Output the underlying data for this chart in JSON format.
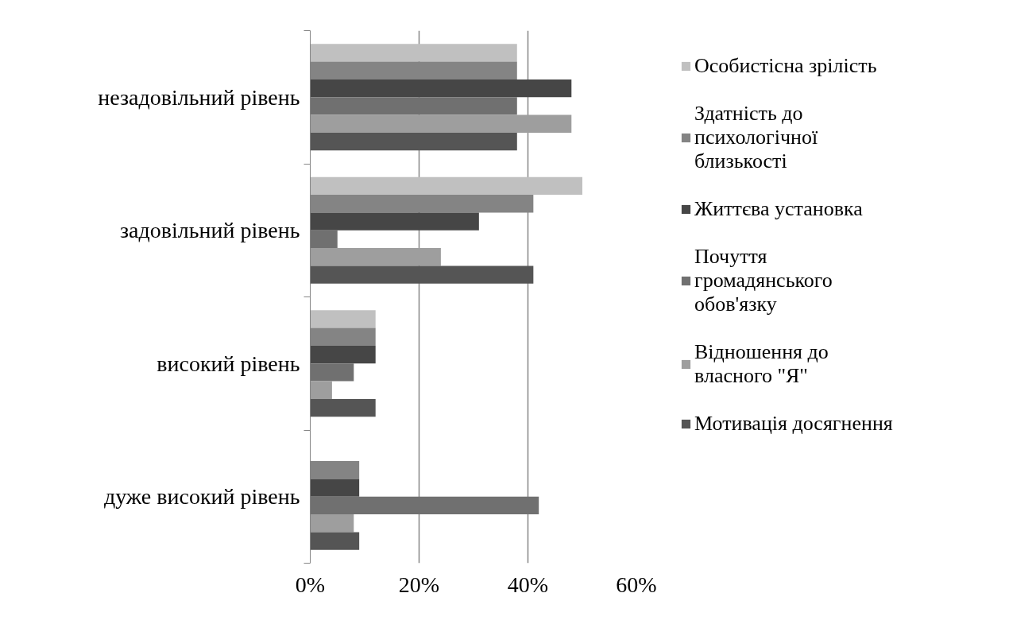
{
  "chart_data": {
    "type": "bar",
    "orientation": "horizontal",
    "categories": [
      "незадовільний рівень",
      "задовільний рівень",
      "високий рівень",
      "дуже високий рівень"
    ],
    "series": [
      {
        "name": "Особистісна зрілість",
        "color": "#c0c0c0",
        "values": [
          38,
          50,
          12,
          0
        ]
      },
      {
        "name": "Здатність до психологічної близькості",
        "color": "#848484",
        "values": [
          38,
          41,
          12,
          9
        ]
      },
      {
        "name": "Життєва установка",
        "color": "#464646",
        "values": [
          48,
          31,
          12,
          9
        ]
      },
      {
        "name": "Почуття громадянського обов'язку",
        "color": "#707070",
        "values": [
          38,
          5,
          8,
          42
        ]
      },
      {
        "name": "Відношення до власного \"Я\"",
        "color": "#9e9e9e",
        "values": [
          48,
          24,
          4,
          8
        ]
      },
      {
        "name": "Мотивація досягнення",
        "color": "#555555",
        "values": [
          38,
          41,
          12,
          9
        ]
      }
    ],
    "xlim": [
      0,
      60
    ],
    "xticks": [
      {
        "value": 0,
        "label": "0%"
      },
      {
        "value": 20,
        "label": "20%"
      },
      {
        "value": 40,
        "label": "40%"
      },
      {
        "value": 60,
        "label": "60%"
      }
    ],
    "grid": "x",
    "legend": "right"
  }
}
